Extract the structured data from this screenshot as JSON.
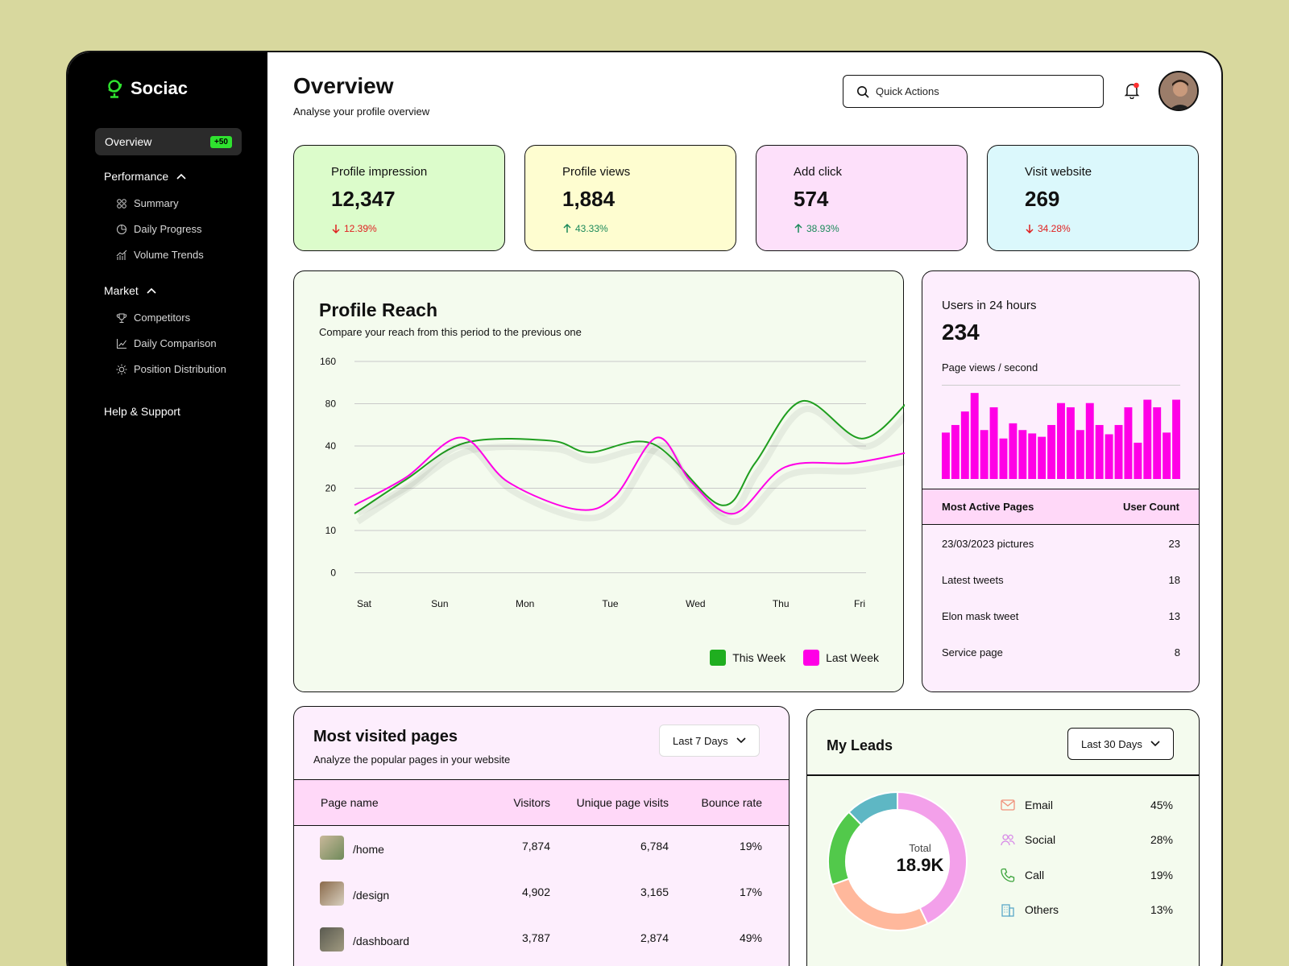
{
  "app": {
    "name": "Sociac"
  },
  "sidebar": {
    "active": {
      "label": "Overview",
      "badge": "+50"
    },
    "groups": [
      {
        "label": "Performance",
        "items": [
          "Summary",
          "Daily Progress",
          "Volume Trends"
        ]
      },
      {
        "label": "Market",
        "items": [
          "Competitors",
          "Daily Comparison",
          "Position Distribution"
        ]
      }
    ],
    "help": "Help & Support"
  },
  "header": {
    "title": "Overview",
    "subtitle": "Analyse your profile overview",
    "search_placeholder": "Quick Actions"
  },
  "stats": [
    {
      "label": "Profile impression",
      "value": "12,347",
      "change": "12.39%",
      "direction": "down",
      "bg": "#dcfccb"
    },
    {
      "label": "Profile views",
      "value": "1,884",
      "change": "43.33%",
      "direction": "up",
      "bg": "#fefdd0"
    },
    {
      "label": "Add click",
      "value": "574",
      "change": "38.93%",
      "direction": "up",
      "bg": "#fde0fa"
    },
    {
      "label": "Visit website",
      "value": "269",
      "change": "34.28%",
      "direction": "down",
      "bg": "#dbf8fc"
    }
  ],
  "reach": {
    "title": "Profile Reach",
    "subtitle": "Compare your reach from this period to the previous one"
  },
  "chart_data": {
    "type": "line",
    "title": "Profile Reach",
    "categories": [
      "Sat",
      "Sun",
      "Mon",
      "Tue",
      "Wed",
      "Thu",
      "Fri"
    ],
    "y_ticks": [
      "160",
      "80",
      "40",
      "20",
      "10",
      "0"
    ],
    "series": [
      {
        "name": "This Week",
        "color": "#1f9e1f",
        "x": [
          0,
          0.6,
          1.3,
          2.3,
          2.75,
          3.5,
          4.3,
          4.7,
          5.25,
          5.95,
          6.5
        ],
        "values": [
          14,
          24,
          43,
          45,
          37,
          42,
          16,
          32,
          85,
          47,
          85
        ]
      },
      {
        "name": "Last Week",
        "color": "#ff00e6",
        "x": [
          0,
          0.6,
          1.25,
          1.8,
          2.6,
          3.05,
          3.55,
          3.95,
          4.45,
          5.05,
          5.85,
          6.5
        ],
        "values": [
          16,
          25,
          48,
          23,
          15,
          18,
          48,
          23,
          14,
          30,
          32,
          37
        ]
      }
    ]
  },
  "users": {
    "label": "Users in 24 hours",
    "value": "234",
    "sub": "Page views / second",
    "bar_color": "#ff00e6",
    "bars": [
      55,
      64,
      80,
      102,
      58,
      85,
      48,
      66,
      58,
      54,
      50,
      64,
      90,
      85,
      58,
      90,
      64,
      53,
      64,
      85,
      43,
      94,
      85,
      55,
      94
    ],
    "table_head": [
      "Most Active Pages",
      "User Count"
    ],
    "rows": [
      {
        "page": "23/03/2023 pictures",
        "count": "23"
      },
      {
        "page": "Latest tweets",
        "count": "18"
      },
      {
        "page": "Elon mask tweet",
        "count": "13"
      },
      {
        "page": "Service page",
        "count": "8"
      }
    ]
  },
  "visited": {
    "title": "Most visited pages",
    "subtitle": "Analyze the popular pages in your website",
    "range": "Last 7 Days",
    "columns": [
      "Page name",
      "Visitors",
      "Unique page visits",
      "Bounce rate"
    ],
    "rows": [
      {
        "page": "/home",
        "visitors": "7,874",
        "unique": "6,784",
        "bounce": "19%"
      },
      {
        "page": "/design",
        "visitors": "4,902",
        "unique": "3,165",
        "bounce": "17%"
      },
      {
        "page": "/dashboard",
        "visitors": "3,787",
        "unique": "2,874",
        "bounce": "49%"
      }
    ]
  },
  "leads": {
    "title": "My Leads",
    "range": "Last 30 Days",
    "total_label": "Total",
    "total_value": "18.9K",
    "items": [
      {
        "label": "Email",
        "percent": "45%",
        "value": 45,
        "color": "#f3a0ea",
        "icon": "mail-icon"
      },
      {
        "label": "Social",
        "percent": "28%",
        "value": 28,
        "color": "#ffb89c",
        "icon": "users-icon"
      },
      {
        "label": "Call",
        "percent": "19%",
        "value": 19,
        "color": "#52c94b",
        "icon": "phone-icon"
      },
      {
        "label": "Others",
        "percent": "13%",
        "value": 13,
        "color": "#5eb7c4",
        "icon": "building-icon"
      }
    ]
  }
}
